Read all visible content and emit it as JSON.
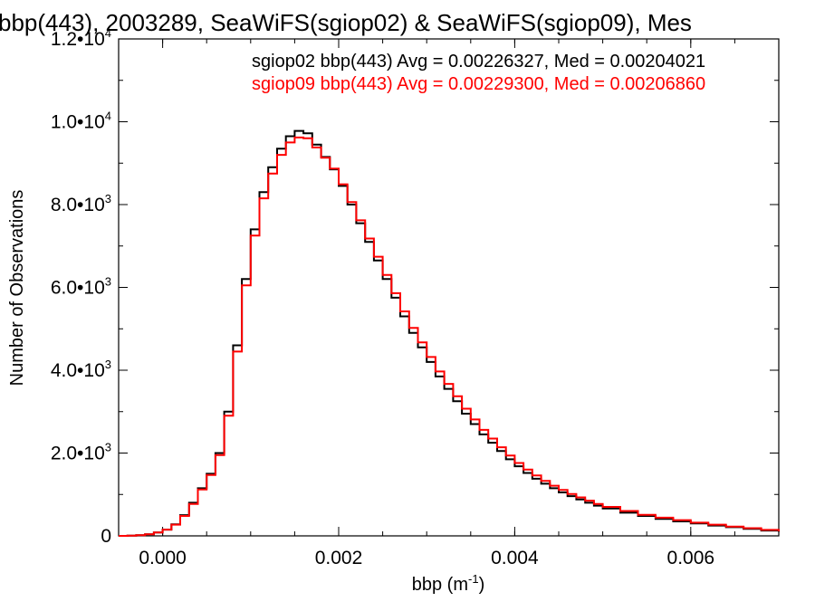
{
  "chart_data": {
    "type": "line",
    "title": "bbp(443), 2003289, SeaWiFS(sgiop02) & SeaWiFS(sgiop09), Mes",
    "xlabel": {
      "base": "bbp (m",
      "exp": "-1",
      "close": ")"
    },
    "ylabel": "Number of Observations",
    "xlim": [
      -0.0005,
      0.007
    ],
    "ylim": [
      0,
      12000
    ],
    "x_ticks": [
      {
        "v": 0.0,
        "label": "0.000"
      },
      {
        "v": 0.002,
        "label": "0.002"
      },
      {
        "v": 0.004,
        "label": "0.004"
      },
      {
        "v": 0.006,
        "label": "0.006"
      }
    ],
    "y_ticks": [
      {
        "v": 0,
        "mant": "0",
        "exp": ""
      },
      {
        "v": 2000,
        "mant": "2.0•10",
        "exp": "3"
      },
      {
        "v": 4000,
        "mant": "4.0•10",
        "exp": "3"
      },
      {
        "v": 6000,
        "mant": "6.0•10",
        "exp": "3"
      },
      {
        "v": 8000,
        "mant": "8.0•10",
        "exp": "3"
      },
      {
        "v": 10000,
        "mant": "1.0•10",
        "exp": "4"
      },
      {
        "v": 12000,
        "mant": "1.2•10",
        "exp": "4"
      }
    ],
    "grid": false,
    "legend_position": "top-right",
    "x": [
      -0.0005,
      -0.0004,
      -0.0003,
      -0.0002,
      -0.0001,
      0.0,
      0.0001,
      0.0002,
      0.0003,
      0.0004,
      0.0005,
      0.0006,
      0.0007,
      0.0008,
      0.0009,
      0.001,
      0.0011,
      0.0012,
      0.0013,
      0.0014,
      0.0015,
      0.0016,
      0.0017,
      0.0018,
      0.0019,
      0.002,
      0.0021,
      0.0022,
      0.0023,
      0.0024,
      0.0025,
      0.0026,
      0.0027,
      0.0028,
      0.0029,
      0.003,
      0.0031,
      0.0032,
      0.0033,
      0.0034,
      0.0035,
      0.0036,
      0.0037,
      0.0038,
      0.0039,
      0.004,
      0.0041,
      0.0042,
      0.0043,
      0.0044,
      0.0045,
      0.0046,
      0.0047,
      0.0048,
      0.0049,
      0.005,
      0.0052,
      0.0054,
      0.0056,
      0.0058,
      0.006,
      0.0062,
      0.0064,
      0.0066,
      0.0068,
      0.007
    ],
    "series": [
      {
        "name": "sgiop02",
        "color": "#000000",
        "values": [
          0,
          5,
          15,
          40,
          80,
          150,
          280,
          500,
          800,
          1150,
          1500,
          2000,
          3000,
          4600,
          6200,
          7400,
          8300,
          8900,
          9350,
          9650,
          9780,
          9720,
          9450,
          9150,
          8850,
          8450,
          8000,
          7550,
          7100,
          6650,
          6200,
          5750,
          5300,
          4900,
          4550,
          4200,
          3850,
          3550,
          3250,
          2950,
          2700,
          2450,
          2250,
          2050,
          1850,
          1680,
          1520,
          1380,
          1260,
          1150,
          1050,
          960,
          880,
          800,
          730,
          660,
          560,
          480,
          410,
          350,
          300,
          250,
          210,
          170,
          130,
          100
        ]
      },
      {
        "name": "sgiop09",
        "color": "#ff0000",
        "values": [
          0,
          5,
          15,
          40,
          80,
          150,
          270,
          480,
          770,
          1120,
          1470,
          1950,
          2900,
          4450,
          6050,
          7250,
          8150,
          8750,
          9200,
          9500,
          9620,
          9600,
          9380,
          9130,
          8870,
          8490,
          8060,
          7620,
          7180,
          6740,
          6300,
          5860,
          5420,
          5020,
          4670,
          4320,
          3970,
          3670,
          3370,
          3070,
          2810,
          2560,
          2350,
          2140,
          1940,
          1760,
          1600,
          1460,
          1330,
          1210,
          1110,
          1010,
          930,
          850,
          770,
          700,
          600,
          510,
          440,
          380,
          320,
          270,
          225,
          185,
          145,
          110
        ]
      }
    ],
    "legend": [
      {
        "text": "sgiop02 bbp(443) Avg = 0.00226327, Med = 0.00204021",
        "color": "#000000"
      },
      {
        "text": "sgiop09 bbp(443) Avg = 0.00229300, Med = 0.00206860",
        "color": "#ff0000"
      }
    ]
  }
}
